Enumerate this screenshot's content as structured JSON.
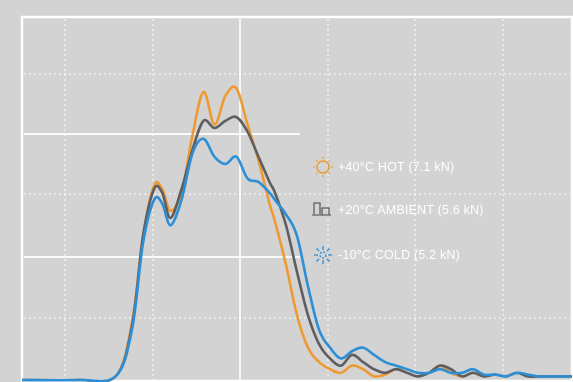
{
  "chart_data": {
    "type": "line",
    "title": "",
    "xlabel": "",
    "ylabel": "",
    "xlim": [
      0,
      100
    ],
    "ylim": [
      0,
      100
    ],
    "grid": true,
    "legend_placement": "right",
    "series": [
      {
        "name": "+40°C HOT (7.1 kN)",
        "color": "#ee9a34",
        "icon": "hot-sun-icon",
        "x": [
          0,
          10,
          17,
          20,
          22,
          24,
          25.5,
          27,
          29,
          31,
          33,
          35,
          37,
          39,
          41,
          43,
          45,
          46,
          48,
          50,
          52,
          54,
          56,
          58,
          60,
          62,
          64,
          66,
          68,
          70,
          72,
          74,
          76,
          78,
          80,
          82,
          84,
          86,
          88,
          90,
          92,
          94,
          96,
          98,
          100
        ],
        "values": [
          0,
          0,
          1,
          16,
          40,
          54,
          53,
          47,
          52,
          68,
          80,
          71,
          79,
          81,
          71,
          61,
          49,
          44,
          32,
          18,
          9,
          5,
          3,
          2,
          4,
          3,
          1,
          1.5,
          3,
          2,
          1,
          2,
          4,
          2,
          1,
          2,
          1,
          1.5,
          1,
          2,
          1,
          1,
          1,
          1,
          1
        ]
      },
      {
        "name": "+20°C AMBIENT (5.6 kN)",
        "color": "#5e5e60",
        "icon": "ambient-thermometer-icon",
        "x": [
          0,
          10,
          17,
          20,
          22,
          24,
          25.5,
          27,
          29,
          31,
          33,
          35,
          37,
          39,
          41,
          43,
          45,
          46,
          48,
          50,
          52,
          54,
          56,
          58,
          60,
          62,
          64,
          66,
          68,
          70,
          72,
          74,
          76,
          78,
          80,
          82,
          84,
          86,
          88,
          90,
          92,
          94,
          96,
          98,
          100
        ],
        "values": [
          0,
          0,
          1,
          15,
          40,
          53,
          52,
          45,
          53,
          64,
          72,
          70,
          72,
          73,
          69,
          62,
          55,
          52,
          43,
          30,
          18,
          10,
          6,
          4,
          7,
          5,
          3,
          2,
          3,
          2,
          1,
          2,
          4,
          3,
          1,
          2,
          1,
          1.5,
          1,
          2,
          1,
          1,
          1,
          1,
          1
        ]
      },
      {
        "name": "-10°C COLD (5.2 kN)",
        "color": "#2c8fd6",
        "icon": "cold-snowflake-icon",
        "x": [
          0,
          10,
          17,
          20,
          22,
          24,
          25.5,
          27,
          29,
          31,
          33,
          35,
          37,
          39,
          41,
          43,
          45,
          46,
          48,
          50,
          52,
          54,
          56,
          58,
          60,
          62,
          64,
          66,
          68,
          70,
          72,
          74,
          76,
          78,
          80,
          82,
          84,
          86,
          88,
          90,
          92,
          94,
          96,
          98,
          100
        ],
        "values": [
          0,
          0,
          1,
          14,
          38,
          50,
          49,
          43,
          50,
          63,
          67,
          62,
          60,
          62,
          56,
          55,
          52,
          50,
          46,
          40,
          26,
          14,
          9,
          6,
          8,
          9,
          7,
          5,
          4,
          3,
          2,
          2,
          3,
          2,
          2,
          3,
          1.5,
          1.5,
          1,
          2,
          1.5,
          1,
          1,
          1,
          1
        ]
      }
    ]
  }
}
